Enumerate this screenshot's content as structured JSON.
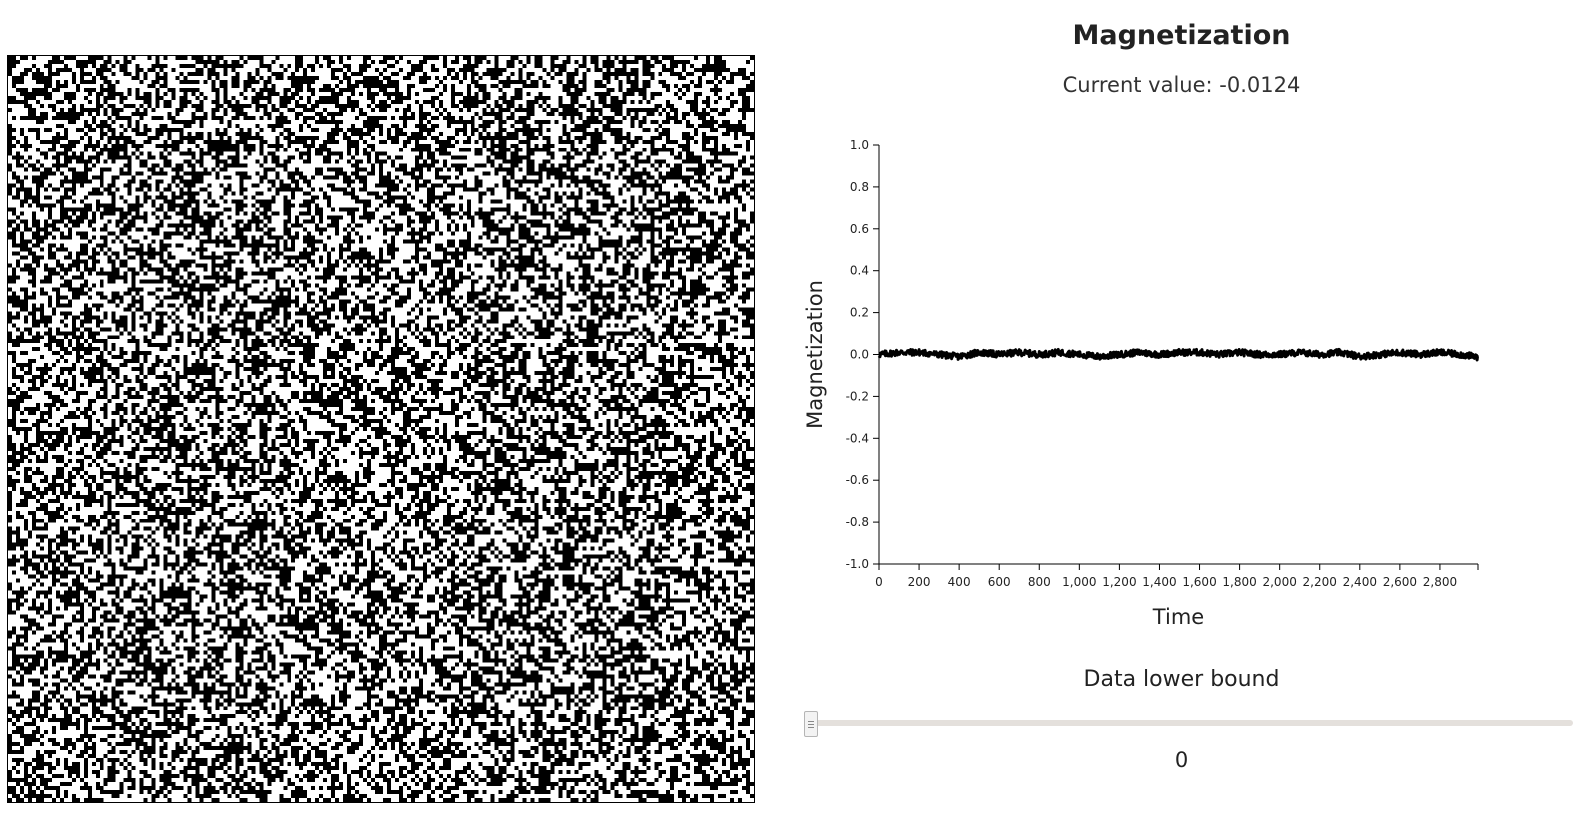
{
  "magnetization_panel": {
    "title": "Magnetization",
    "current_label": "Current value:",
    "current_value": "-0.0124"
  },
  "lattice": {
    "spin_up_color": "#ffffff",
    "spin_down_color": "#000000",
    "border_color": "#000000"
  },
  "chart_data": {
    "type": "line",
    "title": "Magnetization",
    "xlabel": "Time",
    "ylabel": "Magnetization",
    "xlim": [
      0,
      2990
    ],
    "ylim": [
      -1.0,
      1.0
    ],
    "x_ticks": [
      0,
      200,
      400,
      600,
      800,
      1000,
      1200,
      1400,
      1600,
      1800,
      2000,
      2200,
      2400,
      2600,
      2800
    ],
    "x_tick_labels": [
      "0",
      "200",
      "400",
      "600",
      "800",
      "1,000",
      "1,200",
      "1,400",
      "1,600",
      "1,800",
      "2,000",
      "2,200",
      "2,400",
      "2,600",
      "2,800"
    ],
    "y_ticks": [
      1.0,
      0.8,
      0.6,
      0.4,
      0.2,
      0.0,
      -0.2,
      -0.4,
      -0.6,
      -0.8,
      -1.0
    ],
    "y_tick_labels": [
      "1.0",
      "0.8",
      "0.6",
      "0.4",
      "0.2",
      "0.0",
      "-0.2",
      "-0.4",
      "-0.6",
      "-0.8",
      "-1.0"
    ],
    "series": [
      {
        "color": "#000000",
        "x": [
          0,
          100,
          200,
          300,
          400,
          500,
          600,
          700,
          800,
          900,
          1000,
          1100,
          1200,
          1300,
          1400,
          1500,
          1600,
          1700,
          1800,
          1900,
          2000,
          2100,
          2200,
          2300,
          2400,
          2500,
          2600,
          2700,
          2800,
          2900,
          2990
        ],
        "values": [
          0.0,
          0.01,
          0.01,
          0.0,
          -0.01,
          0.01,
          0.0,
          0.01,
          0.0,
          0.01,
          0.0,
          -0.01,
          0.0,
          0.01,
          0.0,
          0.01,
          0.01,
          0.0,
          0.01,
          0.0,
          0.0,
          0.01,
          0.0,
          0.01,
          -0.01,
          0.0,
          0.01,
          0.0,
          0.01,
          0.0,
          -0.0124
        ]
      }
    ],
    "grid": false,
    "legend": "none"
  },
  "slider": {
    "label": "Data lower bound",
    "value": "0",
    "min": 0,
    "max": 2990,
    "current": 0
  }
}
